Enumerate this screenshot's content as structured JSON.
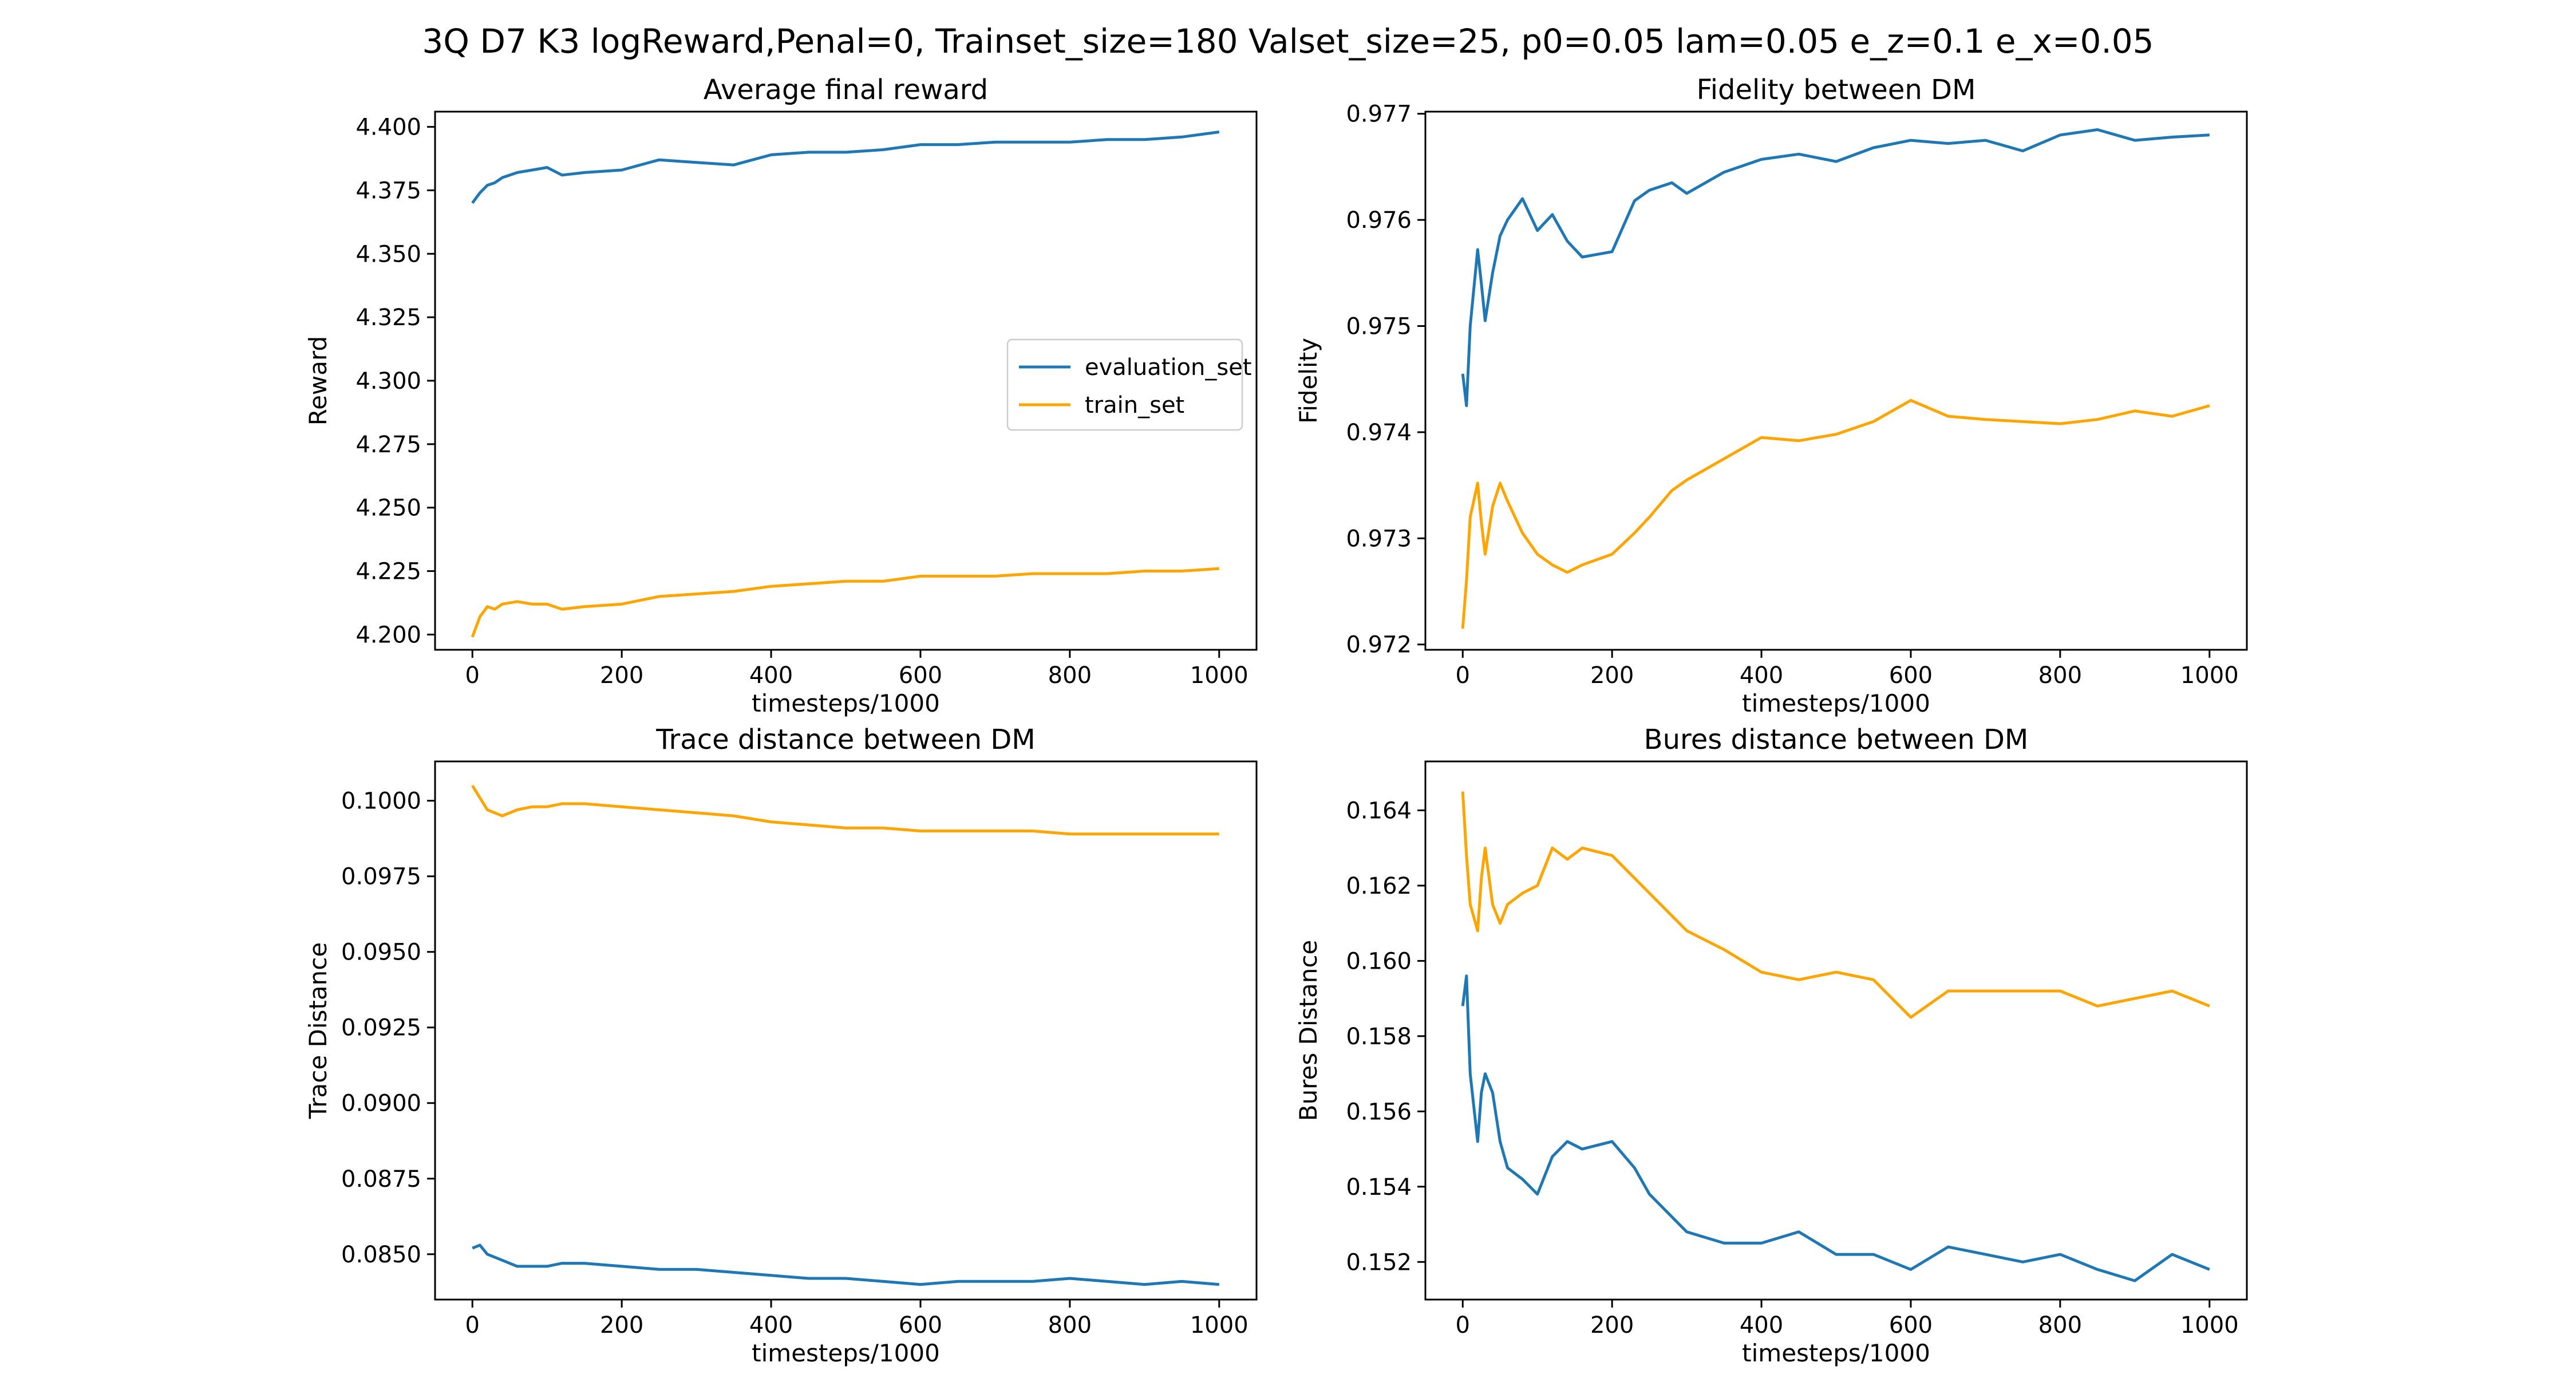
{
  "figure": {
    "suptitle": "3Q D7 K3 logReward,Penal=0, Trainset_size=180 Valset_size=25, p0=0.05 lam=0.05 e_z=0.1 e_x=0.05"
  },
  "colors": {
    "evaluation_set": "#1f77b4",
    "train_set": "#ffa500",
    "axes": "#000000"
  },
  "chart_data": [
    {
      "type": "line",
      "title": "Average final reward",
      "xlabel": "timesteps/1000",
      "ylabel": "Reward",
      "xlim": [
        -50,
        1050
      ],
      "ylim": [
        4.194,
        4.406
      ],
      "xticks": [
        0,
        200,
        400,
        600,
        800,
        1000
      ],
      "xtick_labels": [
        "0",
        "200",
        "400",
        "600",
        "800",
        "1000"
      ],
      "yticks": [
        4.2,
        4.225,
        4.25,
        4.275,
        4.3,
        4.325,
        4.35,
        4.375,
        4.4
      ],
      "ytick_labels": [
        "4.200",
        "4.225",
        "4.250",
        "4.275",
        "4.300",
        "4.325",
        "4.350",
        "4.375",
        "4.400"
      ],
      "legend": {
        "placement": "center-right",
        "entries": [
          "evaluation_set",
          "train_set"
        ]
      },
      "grid": false,
      "series": [
        {
          "name": "evaluation_set",
          "color": "#1f77b4",
          "x": [
            0,
            10,
            20,
            30,
            40,
            60,
            80,
            100,
            120,
            150,
            200,
            250,
            300,
            350,
            400,
            450,
            500,
            550,
            600,
            650,
            700,
            750,
            800,
            850,
            900,
            950,
            1000
          ],
          "y": [
            4.37,
            4.374,
            4.377,
            4.378,
            4.38,
            4.382,
            4.383,
            4.384,
            4.381,
            4.382,
            4.383,
            4.387,
            4.386,
            4.385,
            4.389,
            4.39,
            4.39,
            4.391,
            4.393,
            4.393,
            4.394,
            4.394,
            4.394,
            4.395,
            4.395,
            4.396,
            4.398
          ]
        },
        {
          "name": "train_set",
          "color": "#ffa500",
          "x": [
            0,
            10,
            20,
            30,
            40,
            60,
            80,
            100,
            120,
            150,
            200,
            250,
            300,
            350,
            400,
            450,
            500,
            550,
            600,
            650,
            700,
            750,
            800,
            850,
            900,
            950,
            1000
          ],
          "y": [
            4.199,
            4.207,
            4.211,
            4.21,
            4.212,
            4.213,
            4.212,
            4.212,
            4.21,
            4.211,
            4.212,
            4.215,
            4.216,
            4.217,
            4.219,
            4.22,
            4.221,
            4.221,
            4.223,
            4.223,
            4.223,
            4.224,
            4.224,
            4.224,
            4.225,
            4.225,
            4.226
          ]
        }
      ]
    },
    {
      "type": "line",
      "title": "Fidelity between DM",
      "xlabel": "timesteps/1000",
      "ylabel": "Fidelity",
      "xlim": [
        -50,
        1050
      ],
      "ylim": [
        0.97195,
        0.97702
      ],
      "xticks": [
        0,
        200,
        400,
        600,
        800,
        1000
      ],
      "xtick_labels": [
        "0",
        "200",
        "400",
        "600",
        "800",
        "1000"
      ],
      "yticks": [
        0.972,
        0.973,
        0.974,
        0.975,
        0.976,
        0.977
      ],
      "ytick_labels": [
        "0.972",
        "0.973",
        "0.974",
        "0.975",
        "0.976",
        "0.977"
      ],
      "grid": false,
      "series": [
        {
          "name": "evaluation_set",
          "color": "#1f77b4",
          "x": [
            0,
            5,
            10,
            20,
            25,
            30,
            40,
            50,
            60,
            80,
            100,
            120,
            140,
            160,
            200,
            230,
            250,
            280,
            300,
            350,
            400,
            450,
            500,
            550,
            600,
            650,
            700,
            750,
            800,
            850,
            900,
            950,
            1000
          ],
          "y": [
            0.97455,
            0.97425,
            0.975,
            0.97572,
            0.9754,
            0.97505,
            0.9755,
            0.97585,
            0.976,
            0.9762,
            0.9759,
            0.97605,
            0.9758,
            0.97565,
            0.9757,
            0.97618,
            0.97628,
            0.97635,
            0.97625,
            0.97645,
            0.97657,
            0.97662,
            0.97655,
            0.97668,
            0.97675,
            0.97672,
            0.97675,
            0.97665,
            0.9768,
            0.97685,
            0.97675,
            0.97678,
            0.9768
          ]
        },
        {
          "name": "train_set",
          "color": "#ffa500",
          "x": [
            0,
            5,
            10,
            20,
            25,
            30,
            40,
            50,
            60,
            80,
            100,
            120,
            140,
            160,
            200,
            230,
            250,
            280,
            300,
            350,
            400,
            450,
            500,
            550,
            600,
            650,
            700,
            750,
            800,
            850,
            900,
            950,
            1000
          ],
          "y": [
            0.97215,
            0.9726,
            0.9732,
            0.97352,
            0.97315,
            0.97285,
            0.9733,
            0.97352,
            0.97335,
            0.97305,
            0.97285,
            0.97275,
            0.97268,
            0.97275,
            0.97285,
            0.97305,
            0.9732,
            0.97345,
            0.97355,
            0.97375,
            0.97395,
            0.97392,
            0.97398,
            0.9741,
            0.9743,
            0.97415,
            0.97412,
            0.9741,
            0.97408,
            0.97412,
            0.9742,
            0.97415,
            0.97425
          ]
        }
      ]
    },
    {
      "type": "line",
      "title": "Trace distance between DM",
      "xlabel": "timesteps/1000",
      "ylabel": "Trace Distance",
      "xlim": [
        -50,
        1050
      ],
      "ylim": [
        0.0835,
        0.1013
      ],
      "xticks": [
        0,
        200,
        400,
        600,
        800,
        1000
      ],
      "xtick_labels": [
        "0",
        "200",
        "400",
        "600",
        "800",
        "1000"
      ],
      "yticks": [
        0.085,
        0.0875,
        0.09,
        0.0925,
        0.095,
        0.0975,
        0.1
      ],
      "ytick_labels": [
        "0.0850",
        "0.0875",
        "0.0900",
        "0.0925",
        "0.0950",
        "0.0975",
        "0.1000"
      ],
      "grid": false,
      "series": [
        {
          "name": "evaluation_set",
          "color": "#1f77b4",
          "x": [
            0,
            10,
            20,
            30,
            40,
            60,
            80,
            100,
            120,
            150,
            200,
            250,
            300,
            350,
            400,
            450,
            500,
            550,
            600,
            650,
            700,
            750,
            800,
            850,
            900,
            950,
            1000
          ],
          "y": [
            0.0852,
            0.0853,
            0.085,
            0.0849,
            0.0848,
            0.0846,
            0.0846,
            0.0846,
            0.0847,
            0.0847,
            0.0846,
            0.0845,
            0.0845,
            0.0844,
            0.0843,
            0.0842,
            0.0842,
            0.0841,
            0.084,
            0.0841,
            0.0841,
            0.0841,
            0.0842,
            0.0841,
            0.084,
            0.0841,
            0.084
          ]
        },
        {
          "name": "train_set",
          "color": "#ffa500",
          "x": [
            0,
            10,
            20,
            30,
            40,
            60,
            80,
            100,
            120,
            150,
            200,
            250,
            300,
            350,
            400,
            450,
            500,
            550,
            600,
            650,
            700,
            750,
            800,
            850,
            900,
            950,
            1000
          ],
          "y": [
            0.1005,
            0.1001,
            0.0997,
            0.0996,
            0.0995,
            0.0997,
            0.0998,
            0.0998,
            0.0999,
            0.0999,
            0.0998,
            0.0997,
            0.0996,
            0.0995,
            0.0993,
            0.0992,
            0.0991,
            0.0991,
            0.099,
            0.099,
            0.099,
            0.099,
            0.0989,
            0.0989,
            0.0989,
            0.0989,
            0.0989
          ]
        }
      ]
    },
    {
      "type": "line",
      "title": "Bures distance between DM",
      "xlabel": "timesteps/1000",
      "ylabel": "Bures Distance",
      "xlim": [
        -50,
        1050
      ],
      "ylim": [
        0.151,
        0.1653
      ],
      "xticks": [
        0,
        200,
        400,
        600,
        800,
        1000
      ],
      "xtick_labels": [
        "0",
        "200",
        "400",
        "600",
        "800",
        "1000"
      ],
      "yticks": [
        0.152,
        0.154,
        0.156,
        0.158,
        0.16,
        0.162,
        0.164
      ],
      "ytick_labels": [
        "0.152",
        "0.154",
        "0.156",
        "0.158",
        "0.160",
        "0.162",
        "0.164"
      ],
      "grid": false,
      "series": [
        {
          "name": "evaluation_set",
          "color": "#1f77b4",
          "x": [
            0,
            5,
            10,
            20,
            25,
            30,
            40,
            50,
            60,
            80,
            100,
            120,
            140,
            160,
            200,
            230,
            250,
            280,
            300,
            350,
            400,
            450,
            500,
            550,
            600,
            650,
            700,
            750,
            800,
            850,
            900,
            950,
            1000
          ],
          "y": [
            0.1588,
            0.1596,
            0.157,
            0.1552,
            0.1565,
            0.157,
            0.1565,
            0.1552,
            0.1545,
            0.1542,
            0.1538,
            0.1548,
            0.1552,
            0.155,
            0.1552,
            0.1545,
            0.1538,
            0.1532,
            0.1528,
            0.1525,
            0.1525,
            0.1528,
            0.1522,
            0.1522,
            0.1518,
            0.1524,
            0.1522,
            0.152,
            0.1522,
            0.1518,
            0.1515,
            0.1522,
            0.1518
          ]
        },
        {
          "name": "train_set",
          "color": "#ffa500",
          "x": [
            0,
            5,
            10,
            20,
            25,
            30,
            40,
            50,
            60,
            80,
            100,
            120,
            140,
            160,
            200,
            230,
            250,
            280,
            300,
            350,
            400,
            450,
            500,
            550,
            600,
            650,
            700,
            750,
            800,
            850,
            900,
            950,
            1000
          ],
          "y": [
            0.1645,
            0.1628,
            0.1615,
            0.1608,
            0.1622,
            0.163,
            0.1615,
            0.161,
            0.1615,
            0.1618,
            0.162,
            0.163,
            0.1627,
            0.163,
            0.1628,
            0.1622,
            0.1618,
            0.1612,
            0.1608,
            0.1603,
            0.1597,
            0.1595,
            0.1597,
            0.1595,
            0.1585,
            0.1592,
            0.1592,
            0.1592,
            0.1592,
            0.1588,
            0.159,
            0.1592,
            0.1588
          ]
        }
      ]
    }
  ]
}
